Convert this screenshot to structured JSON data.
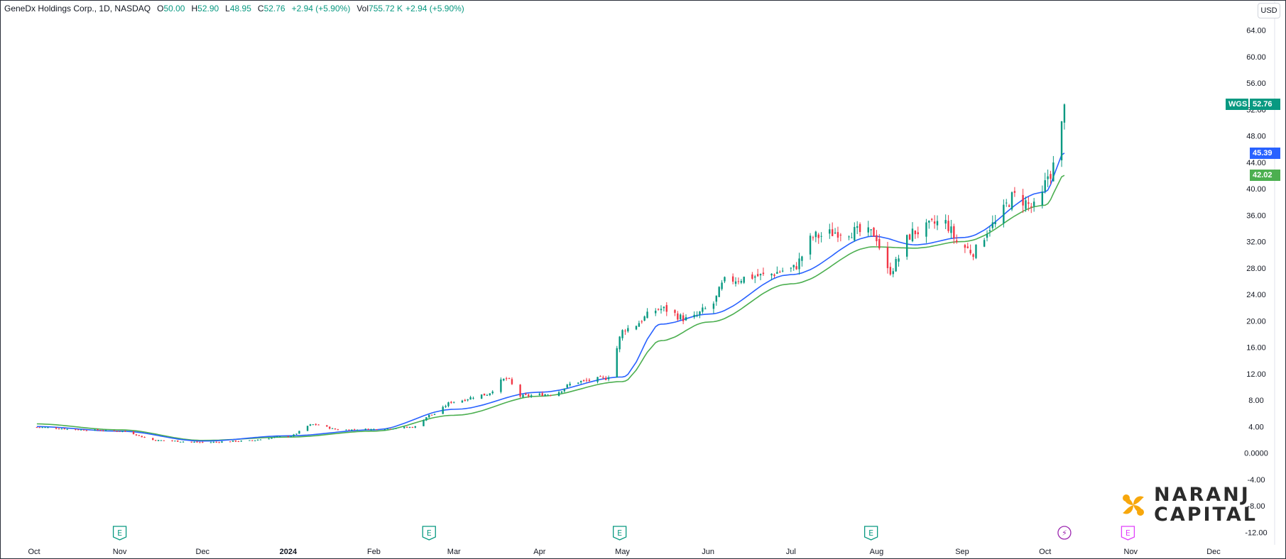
{
  "header": {
    "title": "GeneDx Holdings Corp., 1D, NASDAQ",
    "open_label": "O",
    "open": "50.00",
    "high_label": "H",
    "high": "52.90",
    "low_label": "L",
    "low": "48.95",
    "close_label": "C",
    "close": "52.76",
    "change": "+2.94 (+5.90%)",
    "vol_label": "Vol",
    "volume": "755.72 K",
    "vol_change": "+2.94 (+5.90%)"
  },
  "currency": "USD",
  "price_tags": {
    "symbol": "WGS",
    "last": "52.76",
    "ema_fast": "45.39",
    "ema_slow": "42.02"
  },
  "brand": {
    "line1": "NARANJ",
    "line2": "CAPITAL"
  },
  "colors": {
    "up": "#089981",
    "down": "#f23645",
    "ema_fast": "#2962ff",
    "ema_slow": "#4caf50",
    "earnings": "#089981",
    "dividend": "#9c27b0",
    "brand_orange": "#f7a70c"
  },
  "chart_data": {
    "type": "candlestick",
    "symbol": "WGS",
    "interval": "1D",
    "x_range": [
      "2023-10-01",
      "2024-12-10"
    ],
    "ylim": [
      -12,
      68
    ],
    "y_ticks": [
      "64.00",
      "60.00",
      "56.00",
      "52.00",
      "48.00",
      "44.00",
      "40.00",
      "36.00",
      "32.00",
      "28.00",
      "24.00",
      "20.00",
      "16.00",
      "12.00",
      "8.00",
      "4.00",
      "0.0000",
      "-4.00",
      "-8.00",
      "-12.00"
    ],
    "x_ticks": [
      {
        "label": "Oct",
        "date": "2023-10-01"
      },
      {
        "label": "Nov",
        "date": "2023-11-01"
      },
      {
        "label": "Dec",
        "date": "2023-12-01"
      },
      {
        "label": "2024",
        "date": "2024-01-01"
      },
      {
        "label": "Feb",
        "date": "2024-02-01"
      },
      {
        "label": "Mar",
        "date": "2024-03-01"
      },
      {
        "label": "Apr",
        "date": "2024-04-01"
      },
      {
        "label": "May",
        "date": "2024-05-01"
      },
      {
        "label": "Jun",
        "date": "2024-06-01"
      },
      {
        "label": "Jul",
        "date": "2024-07-01"
      },
      {
        "label": "Aug",
        "date": "2024-08-01"
      },
      {
        "label": "Sep",
        "date": "2024-09-01"
      },
      {
        "label": "Oct",
        "date": "2024-10-01"
      },
      {
        "label": "Nov",
        "date": "2024-11-01"
      },
      {
        "label": "Dec",
        "date": "2024-12-01"
      }
    ],
    "close_path": [
      [
        "2023-10-01",
        3.9
      ],
      [
        "2023-10-20",
        3.5
      ],
      [
        "2023-11-01",
        3.3
      ],
      [
        "2023-11-15",
        1.9
      ],
      [
        "2023-12-01",
        1.6
      ],
      [
        "2023-12-15",
        1.8
      ],
      [
        "2024-01-01",
        2.5
      ],
      [
        "2024-01-10",
        4.3
      ],
      [
        "2024-01-20",
        3.5
      ],
      [
        "2024-02-01",
        3.6
      ],
      [
        "2024-02-15",
        3.9
      ],
      [
        "2024-02-22",
        5.8
      ],
      [
        "2024-03-01",
        7.8
      ],
      [
        "2024-03-12",
        8.8
      ],
      [
        "2024-03-20",
        11.2
      ],
      [
        "2024-03-25",
        8.6
      ],
      [
        "2024-04-05",
        8.9
      ],
      [
        "2024-04-15",
        10.8
      ],
      [
        "2024-04-25",
        11.3
      ],
      [
        "2024-05-02",
        18.8
      ],
      [
        "2024-05-15",
        21.8
      ],
      [
        "2024-05-25",
        20.2
      ],
      [
        "2024-06-01",
        21.8
      ],
      [
        "2024-06-08",
        26.2
      ],
      [
        "2024-06-20",
        26.8
      ],
      [
        "2024-07-01",
        27.8
      ],
      [
        "2024-07-10",
        32.8
      ],
      [
        "2024-07-20",
        33.6
      ],
      [
        "2024-07-31",
        33.2
      ],
      [
        "2024-08-05",
        27.5
      ],
      [
        "2024-08-15",
        33.5
      ],
      [
        "2024-08-25",
        35.0
      ],
      [
        "2024-09-01",
        31.2
      ],
      [
        "2024-09-05",
        30.5
      ],
      [
        "2024-09-12",
        34.5
      ],
      [
        "2024-09-20",
        38.8
      ],
      [
        "2024-09-28",
        37.0
      ],
      [
        "2024-10-03",
        42.5
      ],
      [
        "2024-10-06",
        46.0
      ],
      [
        "2024-10-08",
        52.76
      ]
    ],
    "ema_fast_path": [
      [
        "2023-10-01",
        4.0
      ],
      [
        "2023-11-01",
        3.3
      ],
      [
        "2023-12-01",
        1.8
      ],
      [
        "2024-01-01",
        2.6
      ],
      [
        "2024-02-01",
        3.5
      ],
      [
        "2024-03-01",
        6.6
      ],
      [
        "2024-04-01",
        9.2
      ],
      [
        "2024-05-01",
        11.5
      ],
      [
        "2024-05-15",
        19.5
      ],
      [
        "2024-06-01",
        21.0
      ],
      [
        "2024-07-01",
        27.0
      ],
      [
        "2024-07-31",
        32.8
      ],
      [
        "2024-08-15",
        31.5
      ],
      [
        "2024-09-01",
        32.6
      ],
      [
        "2024-10-01",
        39.5
      ],
      [
        "2024-10-08",
        45.39
      ]
    ],
    "ema_slow_path": [
      [
        "2023-10-01",
        4.4
      ],
      [
        "2023-11-01",
        3.5
      ],
      [
        "2023-12-01",
        1.9
      ],
      [
        "2024-01-01",
        2.4
      ],
      [
        "2024-02-01",
        3.3
      ],
      [
        "2024-03-01",
        5.7
      ],
      [
        "2024-04-01",
        8.6
      ],
      [
        "2024-05-01",
        10.8
      ],
      [
        "2024-05-15",
        17.0
      ],
      [
        "2024-06-01",
        19.8
      ],
      [
        "2024-07-01",
        25.6
      ],
      [
        "2024-07-31",
        31.2
      ],
      [
        "2024-08-15",
        31.0
      ],
      [
        "2024-09-01",
        32.0
      ],
      [
        "2024-10-01",
        37.5
      ],
      [
        "2024-10-08",
        42.02
      ]
    ],
    "events": [
      {
        "type": "earnings",
        "label": "E",
        "date": "2023-11-01"
      },
      {
        "type": "earnings",
        "label": "E",
        "date": "2024-02-21"
      },
      {
        "type": "earnings",
        "label": "E",
        "date": "2024-04-30"
      },
      {
        "type": "earnings",
        "label": "E",
        "date": "2024-07-30"
      },
      {
        "type": "dividend",
        "label": "⚡",
        "date": "2024-10-08"
      },
      {
        "type": "earnings-upcoming",
        "label": "E",
        "date": "2024-10-31"
      }
    ]
  }
}
